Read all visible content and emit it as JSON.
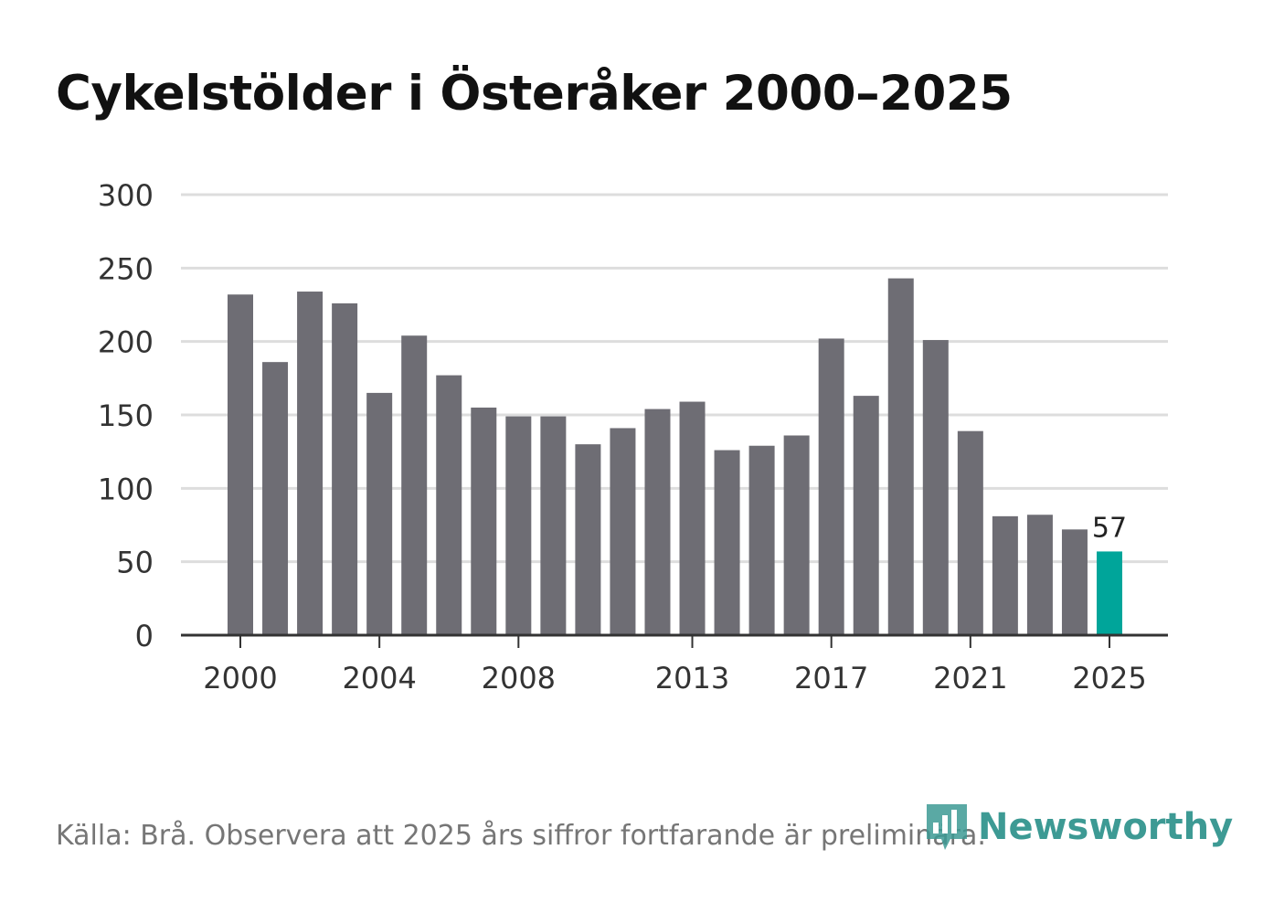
{
  "title": "Cykelstölder i Österåker 2000–2025",
  "source_text": "Källa: Brå. Observera att 2025 års siffror fortfarande är preliminära.",
  "brand": {
    "name": "Newsworthy",
    "icon": "bar-chart-logo-icon",
    "color": "#3d9a94"
  },
  "colors": {
    "bar": "#6e6d74",
    "highlight": "#00a59a",
    "grid": "#dddddd",
    "axis": "#333333"
  },
  "chart_data": {
    "type": "bar",
    "title": "Cykelstölder i Österåker 2000–2025",
    "xlabel": "",
    "ylabel": "",
    "ylim": [
      0,
      300
    ],
    "y_ticks": [
      0,
      50,
      100,
      150,
      200,
      250,
      300
    ],
    "categories": [
      2000,
      2001,
      2002,
      2003,
      2004,
      2005,
      2006,
      2007,
      2008,
      2009,
      2010,
      2011,
      2012,
      2013,
      2014,
      2015,
      2016,
      2017,
      2018,
      2019,
      2020,
      2021,
      2022,
      2023,
      2024,
      2025
    ],
    "values": [
      232,
      186,
      234,
      226,
      165,
      204,
      177,
      155,
      149,
      149,
      130,
      141,
      154,
      159,
      126,
      129,
      136,
      202,
      163,
      243,
      201,
      139,
      81,
      82,
      72,
      57
    ],
    "x_tick_labels": [
      "2000",
      "2004",
      "2008",
      "2013",
      "2017",
      "2021",
      "2025"
    ],
    "highlight_category": 2025,
    "annotations": [
      {
        "category": 2025,
        "text": "57"
      }
    ],
    "grid": true
  }
}
